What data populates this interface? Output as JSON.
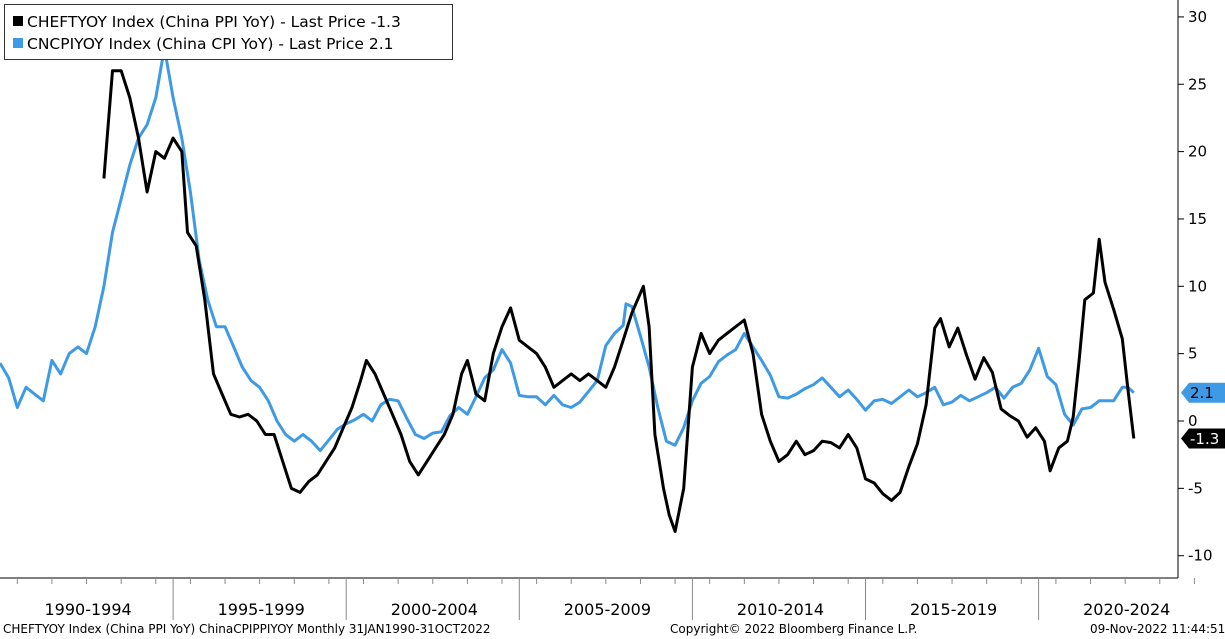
{
  "legend": [
    {
      "label": "CHEFTYOY Index (China PPI YoY) - Last Price -1.3",
      "color": "#000000"
    },
    {
      "label": "CNCPIYOY Index (China CPI YoY) - Last Price 2.1",
      "color": "#3f9ae5"
    }
  ],
  "footer": {
    "left": "CHEFTYOY Index (China PPI YoY) ChinaCPIPPIYOY  Monthly 31JAN1990-31OCT2022",
    "center": "Copyright© 2022 Bloomberg Finance L.P.",
    "right": "09-Nov-2022 11:44:51"
  },
  "chart_data": {
    "type": "line",
    "x_categories": [
      "1990-1994",
      "1995-1999",
      "2000-2004",
      "2005-2009",
      "2010-2014",
      "2015-2019",
      "2020-2024"
    ],
    "x_range": [
      "1990-01",
      "2024-12"
    ],
    "y_ticks": [
      30,
      25,
      20,
      15,
      10,
      5,
      0,
      -5,
      -10
    ],
    "y_tick_labels": [
      "30",
      "25",
      "20",
      "15",
      "10",
      "5",
      "0",
      "-5",
      "-10"
    ],
    "ylim": [
      -11,
      31
    ],
    "y_axis_side": "right",
    "grid": false,
    "legend_position": "top-left",
    "last_values": [
      {
        "series": "CHEFTYOY",
        "label": "-1.3",
        "value": -1.3,
        "color": "#000000",
        "text_color": "#ffffff"
      },
      {
        "series": "CNCPIYOY",
        "label": "2.1",
        "value": 2.1,
        "color": "#3f9ae5",
        "text_color": "#000000"
      }
    ],
    "series": [
      {
        "name": "CHEFTYOY Index (China PPI YoY)",
        "color": "#000000",
        "points": [
          [
            "1993-01",
            18
          ],
          [
            "1993-04",
            26
          ],
          [
            "1993-07",
            26
          ],
          [
            "1993-10",
            24
          ],
          [
            "1994-01",
            21
          ],
          [
            "1994-04",
            17
          ],
          [
            "1994-07",
            20
          ],
          [
            "1994-10",
            19.5
          ],
          [
            "1995-01",
            21
          ],
          [
            "1995-04",
            20
          ],
          [
            "1995-06",
            14
          ],
          [
            "1995-09",
            13
          ],
          [
            "1995-12",
            9
          ],
          [
            "1996-03",
            3.5
          ],
          [
            "1996-06",
            2
          ],
          [
            "1996-09",
            0.5
          ],
          [
            "1996-12",
            0.3
          ],
          [
            "1997-03",
            0.5
          ],
          [
            "1997-06",
            0
          ],
          [
            "1997-09",
            -1
          ],
          [
            "1997-12",
            -1
          ],
          [
            "1998-03",
            -3
          ],
          [
            "1998-06",
            -5
          ],
          [
            "1998-09",
            -5.3
          ],
          [
            "1998-12",
            -4.5
          ],
          [
            "1999-03",
            -4
          ],
          [
            "1999-06",
            -3
          ],
          [
            "1999-09",
            -2
          ],
          [
            "1999-12",
            -0.5
          ],
          [
            "2000-03",
            1
          ],
          [
            "2000-06",
            3
          ],
          [
            "2000-08",
            4.5
          ],
          [
            "2000-11",
            3.5
          ],
          [
            "2001-02",
            2
          ],
          [
            "2001-05",
            0.5
          ],
          [
            "2001-08",
            -1
          ],
          [
            "2001-11",
            -3
          ],
          [
            "2002-02",
            -4
          ],
          [
            "2002-05",
            -3
          ],
          [
            "2002-08",
            -2
          ],
          [
            "2002-11",
            -1
          ],
          [
            "2003-02",
            0.5
          ],
          [
            "2003-05",
            3.5
          ],
          [
            "2003-07",
            4.5
          ],
          [
            "2003-10",
            2
          ],
          [
            "2004-01",
            1.5
          ],
          [
            "2004-04",
            5
          ],
          [
            "2004-07",
            7
          ],
          [
            "2004-10",
            8.4
          ],
          [
            "2005-01",
            6
          ],
          [
            "2005-04",
            5.5
          ],
          [
            "2005-07",
            5
          ],
          [
            "2005-10",
            4
          ],
          [
            "2006-01",
            2.5
          ],
          [
            "2006-04",
            3
          ],
          [
            "2006-07",
            3.5
          ],
          [
            "2006-10",
            3
          ],
          [
            "2007-01",
            3.5
          ],
          [
            "2007-04",
            3
          ],
          [
            "2007-07",
            2.5
          ],
          [
            "2007-10",
            4
          ],
          [
            "2008-01",
            6
          ],
          [
            "2008-04",
            8
          ],
          [
            "2008-07",
            9.5
          ],
          [
            "2008-08",
            10
          ],
          [
            "2008-10",
            7
          ],
          [
            "2008-12",
            -1
          ],
          [
            "2009-03",
            -5
          ],
          [
            "2009-05",
            -7
          ],
          [
            "2009-07",
            -8.2
          ],
          [
            "2009-10",
            -5
          ],
          [
            "2010-01",
            4
          ],
          [
            "2010-04",
            6.5
          ],
          [
            "2010-07",
            5
          ],
          [
            "2010-10",
            6
          ],
          [
            "2011-01",
            6.5
          ],
          [
            "2011-04",
            7
          ],
          [
            "2011-07",
            7.5
          ],
          [
            "2011-10",
            5
          ],
          [
            "2012-01",
            0.5
          ],
          [
            "2012-04",
            -1.5
          ],
          [
            "2012-07",
            -3
          ],
          [
            "2012-10",
            -2.5
          ],
          [
            "2013-01",
            -1.5
          ],
          [
            "2013-04",
            -2.5
          ],
          [
            "2013-07",
            -2.2
          ],
          [
            "2013-10",
            -1.5
          ],
          [
            "2014-01",
            -1.6
          ],
          [
            "2014-04",
            -2
          ],
          [
            "2014-07",
            -1
          ],
          [
            "2014-10",
            -2
          ],
          [
            "2015-01",
            -4.3
          ],
          [
            "2015-04",
            -4.6
          ],
          [
            "2015-07",
            -5.4
          ],
          [
            "2015-10",
            -5.9
          ],
          [
            "2016-01",
            -5.3
          ],
          [
            "2016-04",
            -3.4
          ],
          [
            "2016-07",
            -1.7
          ],
          [
            "2016-10",
            1.2
          ],
          [
            "2017-01",
            6.9
          ],
          [
            "2017-03",
            7.6
          ],
          [
            "2017-06",
            5.5
          ],
          [
            "2017-09",
            6.9
          ],
          [
            "2017-12",
            4.9
          ],
          [
            "2018-03",
            3.1
          ],
          [
            "2018-06",
            4.7
          ],
          [
            "2018-09",
            3.6
          ],
          [
            "2018-12",
            0.9
          ],
          [
            "2019-03",
            0.4
          ],
          [
            "2019-06",
            0
          ],
          [
            "2019-09",
            -1.2
          ],
          [
            "2019-12",
            -0.5
          ],
          [
            "2020-03",
            -1.5
          ],
          [
            "2020-05",
            -3.7
          ],
          [
            "2020-08",
            -2
          ],
          [
            "2020-11",
            -1.5
          ],
          [
            "2021-01",
            0.3
          ],
          [
            "2021-03",
            4.4
          ],
          [
            "2021-05",
            9
          ],
          [
            "2021-08",
            9.5
          ],
          [
            "2021-10",
            13.5
          ],
          [
            "2021-12",
            10.3
          ],
          [
            "2022-03",
            8.3
          ],
          [
            "2022-06",
            6.1
          ],
          [
            "2022-08",
            2.3
          ],
          [
            "2022-10",
            -1.3
          ]
        ]
      },
      {
        "name": "CNCPIYOY Index (China CPI YoY)",
        "color": "#3f9ae5",
        "points": [
          [
            "1990-01",
            4.3
          ],
          [
            "1990-04",
            3.2
          ],
          [
            "1990-07",
            1
          ],
          [
            "1990-10",
            2.5
          ],
          [
            "1991-01",
            2
          ],
          [
            "1991-04",
            1.5
          ],
          [
            "1991-07",
            4.5
          ],
          [
            "1991-10",
            3.5
          ],
          [
            "1992-01",
            5
          ],
          [
            "1992-04",
            5.5
          ],
          [
            "1992-07",
            5
          ],
          [
            "1992-10",
            7
          ],
          [
            "1993-01",
            10
          ],
          [
            "1993-04",
            14
          ],
          [
            "1993-07",
            16.5
          ],
          [
            "1993-10",
            19
          ],
          [
            "1994-01",
            21
          ],
          [
            "1994-04",
            22
          ],
          [
            "1994-07",
            24
          ],
          [
            "1994-10",
            27.7
          ],
          [
            "1995-01",
            24
          ],
          [
            "1995-04",
            21
          ],
          [
            "1995-07",
            17
          ],
          [
            "1995-10",
            12
          ],
          [
            "1996-01",
            9
          ],
          [
            "1996-04",
            7
          ],
          [
            "1996-07",
            7
          ],
          [
            "1996-10",
            5.5
          ],
          [
            "1997-01",
            4
          ],
          [
            "1997-04",
            3
          ],
          [
            "1997-07",
            2.5
          ],
          [
            "1997-10",
            1.5
          ],
          [
            "1998-01",
            0
          ],
          [
            "1998-04",
            -1
          ],
          [
            "1998-07",
            -1.5
          ],
          [
            "1998-10",
            -1
          ],
          [
            "1999-01",
            -1.5
          ],
          [
            "1999-04",
            -2.2
          ],
          [
            "1999-07",
            -1.4
          ],
          [
            "1999-10",
            -0.6
          ],
          [
            "2000-01",
            -0.2
          ],
          [
            "2000-04",
            0.1
          ],
          [
            "2000-07",
            0.5
          ],
          [
            "2000-10",
            0
          ],
          [
            "2001-01",
            1.2
          ],
          [
            "2001-04",
            1.6
          ],
          [
            "2001-07",
            1.5
          ],
          [
            "2001-10",
            0.2
          ],
          [
            "2002-01",
            -1
          ],
          [
            "2002-04",
            -1.3
          ],
          [
            "2002-07",
            -0.9
          ],
          [
            "2002-10",
            -0.8
          ],
          [
            "2003-01",
            0.4
          ],
          [
            "2003-04",
            1
          ],
          [
            "2003-07",
            0.5
          ],
          [
            "2003-10",
            1.8
          ],
          [
            "2004-01",
            3.2
          ],
          [
            "2004-04",
            3.8
          ],
          [
            "2004-07",
            5.3
          ],
          [
            "2004-10",
            4.3
          ],
          [
            "2005-01",
            1.9
          ],
          [
            "2005-04",
            1.8
          ],
          [
            "2005-07",
            1.8
          ],
          [
            "2005-10",
            1.2
          ],
          [
            "2006-01",
            1.9
          ],
          [
            "2006-04",
            1.2
          ],
          [
            "2006-07",
            1
          ],
          [
            "2006-10",
            1.4
          ],
          [
            "2007-01",
            2.2
          ],
          [
            "2007-04",
            3
          ],
          [
            "2007-07",
            5.6
          ],
          [
            "2007-10",
            6.5
          ],
          [
            "2008-01",
            7.1
          ],
          [
            "2008-02",
            8.7
          ],
          [
            "2008-04",
            8.5
          ],
          [
            "2008-07",
            6.3
          ],
          [
            "2008-10",
            4
          ],
          [
            "2009-01",
            1
          ],
          [
            "2009-04",
            -1.5
          ],
          [
            "2009-07",
            -1.8
          ],
          [
            "2009-10",
            -0.5
          ],
          [
            "2010-01",
            1.5
          ],
          [
            "2010-04",
            2.8
          ],
          [
            "2010-07",
            3.3
          ],
          [
            "2010-10",
            4.4
          ],
          [
            "2011-01",
            4.9
          ],
          [
            "2011-04",
            5.3
          ],
          [
            "2011-07",
            6.5
          ],
          [
            "2011-10",
            5.5
          ],
          [
            "2012-01",
            4.5
          ],
          [
            "2012-04",
            3.4
          ],
          [
            "2012-07",
            1.8
          ],
          [
            "2012-10",
            1.7
          ],
          [
            "2013-01",
            2
          ],
          [
            "2013-04",
            2.4
          ],
          [
            "2013-07",
            2.7
          ],
          [
            "2013-10",
            3.2
          ],
          [
            "2014-01",
            2.5
          ],
          [
            "2014-04",
            1.8
          ],
          [
            "2014-07",
            2.3
          ],
          [
            "2014-10",
            1.6
          ],
          [
            "2015-01",
            0.8
          ],
          [
            "2015-04",
            1.5
          ],
          [
            "2015-07",
            1.6
          ],
          [
            "2015-10",
            1.3
          ],
          [
            "2016-01",
            1.8
          ],
          [
            "2016-04",
            2.3
          ],
          [
            "2016-07",
            1.8
          ],
          [
            "2016-10",
            2.1
          ],
          [
            "2017-01",
            2.5
          ],
          [
            "2017-04",
            1.2
          ],
          [
            "2017-07",
            1.4
          ],
          [
            "2017-10",
            1.9
          ],
          [
            "2018-01",
            1.5
          ],
          [
            "2018-04",
            1.8
          ],
          [
            "2018-07",
            2.1
          ],
          [
            "2018-10",
            2.5
          ],
          [
            "2019-01",
            1.7
          ],
          [
            "2019-04",
            2.5
          ],
          [
            "2019-07",
            2.8
          ],
          [
            "2019-10",
            3.8
          ],
          [
            "2020-01",
            5.4
          ],
          [
            "2020-04",
            3.3
          ],
          [
            "2020-07",
            2.7
          ],
          [
            "2020-10",
            0.5
          ],
          [
            "2021-01",
            -0.3
          ],
          [
            "2021-04",
            0.9
          ],
          [
            "2021-07",
            1
          ],
          [
            "2021-10",
            1.5
          ],
          [
            "2021-12",
            1.5
          ],
          [
            "2022-03",
            1.5
          ],
          [
            "2022-06",
            2.5
          ],
          [
            "2022-08",
            2.5
          ],
          [
            "2022-10",
            2.1
          ]
        ]
      }
    ]
  }
}
